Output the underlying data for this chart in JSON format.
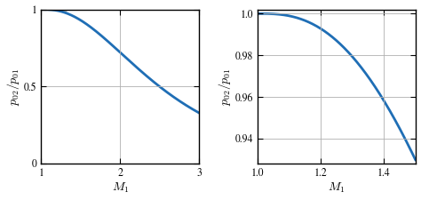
{
  "line_color": "#1f6eb5",
  "line_width": 2.0,
  "background_color": "#ffffff",
  "grid_color": "#b0b0b0",
  "plot1": {
    "M1_min": 1.0,
    "M1_max": 3.0,
    "xlabel": "$M_1$",
    "ylabel": "$p_{02}/p_{01}$",
    "xlim": [
      1.0,
      3.0
    ],
    "ylim": [
      0.0,
      1.0
    ],
    "xticks": [
      1,
      2,
      3
    ],
    "yticks": [
      0,
      0.5,
      1
    ],
    "shade_color": "#c0c0c0",
    "shade_M1_max": 1.32
  },
  "plot2": {
    "M1_min": 1.0,
    "M1_max": 1.5,
    "xlabel": "$M_1$",
    "ylabel": "$p_{02}/p_{01}$",
    "xlim": [
      1.0,
      1.5
    ],
    "ylim": [
      0.928,
      1.002
    ],
    "xticks": [
      1.0,
      1.2,
      1.4
    ],
    "yticks": [
      0.94,
      0.96,
      0.98,
      1.0
    ]
  },
  "gamma": 1.4,
  "tick_fontsize": 8.5,
  "label_fontsize": 10
}
